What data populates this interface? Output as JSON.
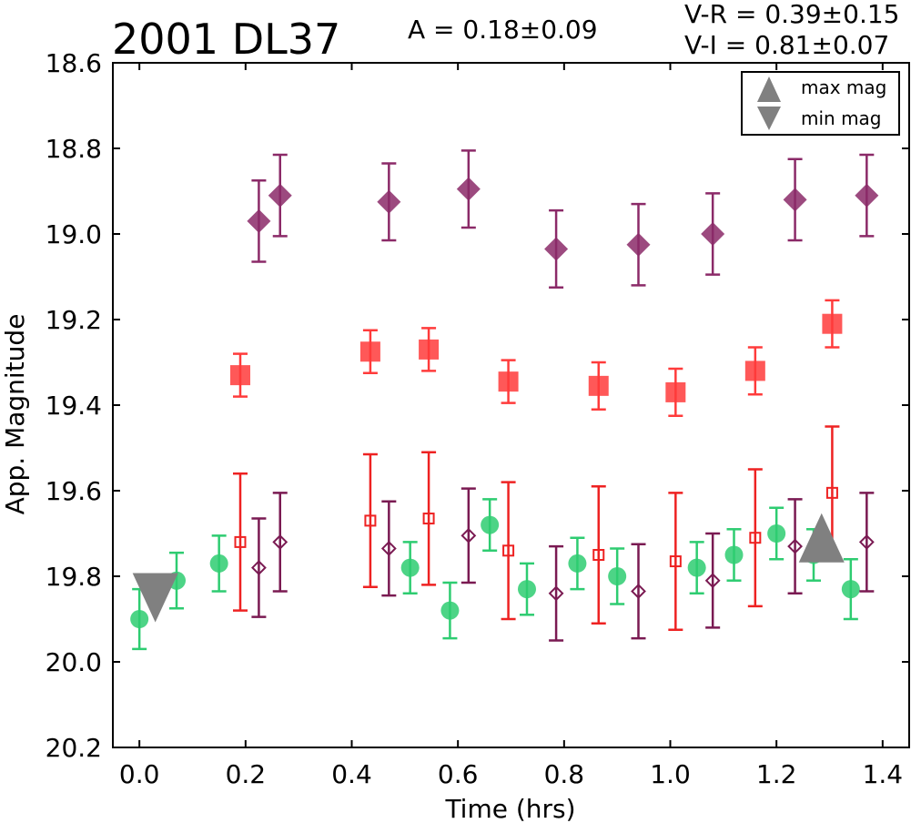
{
  "chart_data": {
    "type": "scatter",
    "title": "2001 DL37",
    "annotations": {
      "amplitude": "A  = 0.18±0.09",
      "v_r": "V-R = 0.39±0.15",
      "v_i": "V-I  = 0.81±0.07"
    },
    "xlabel": "Time (hrs)",
    "ylabel": "App. Magnitude",
    "xlim": [
      -0.05,
      1.45
    ],
    "ylim": [
      20.2,
      18.6
    ],
    "y_inverted": true,
    "xticks": [
      "0.0",
      "0.2",
      "0.4",
      "0.6",
      "0.8",
      "1.0",
      "1.2",
      "1.4"
    ],
    "xtick_values": [
      0.0,
      0.2,
      0.4,
      0.6,
      0.8,
      1.0,
      1.2,
      1.4
    ],
    "yticks": [
      "18.6",
      "18.8",
      "19.0",
      "19.2",
      "19.4",
      "19.6",
      "19.8",
      "20.0",
      "20.2"
    ],
    "ytick_values": [
      18.6,
      18.8,
      19.0,
      19.2,
      19.4,
      19.6,
      19.8,
      20.0,
      20.2
    ],
    "grid": false,
    "legend": {
      "placement": "top-right",
      "entries": [
        {
          "label": "max mag",
          "marker": "triangle-up",
          "color": "#808080"
        },
        {
          "label": "min mag",
          "marker": "triangle-down",
          "color": "#808080"
        }
      ]
    },
    "series": [
      {
        "marker": "circle",
        "filled": true,
        "color": "#2ecc71",
        "points": [
          {
            "x": 0.0,
            "y": 19.9,
            "err": 0.07
          },
          {
            "x": 0.07,
            "y": 19.81,
            "err": 0.065
          },
          {
            "x": 0.15,
            "y": 19.77,
            "err": 0.065
          },
          {
            "x": 0.51,
            "y": 19.78,
            "err": 0.06
          },
          {
            "x": 0.585,
            "y": 19.88,
            "err": 0.065
          },
          {
            "x": 0.66,
            "y": 19.68,
            "err": 0.06
          },
          {
            "x": 0.73,
            "y": 19.83,
            "err": 0.06
          },
          {
            "x": 0.825,
            "y": 19.77,
            "err": 0.06
          },
          {
            "x": 0.9,
            "y": 19.8,
            "err": 0.065
          },
          {
            "x": 1.05,
            "y": 19.78,
            "err": 0.06
          },
          {
            "x": 1.12,
            "y": 19.75,
            "err": 0.06
          },
          {
            "x": 1.2,
            "y": 19.7,
            "err": 0.06
          },
          {
            "x": 1.27,
            "y": 19.75,
            "err": 0.06
          },
          {
            "x": 1.34,
            "y": 19.83,
            "err": 0.07
          }
        ]
      },
      {
        "marker": "square",
        "filled": false,
        "color": "#ee2222",
        "points": [
          {
            "x": 0.19,
            "y": 19.72,
            "err": 0.16
          },
          {
            "x": 0.435,
            "y": 19.67,
            "err": 0.155
          },
          {
            "x": 0.545,
            "y": 19.665,
            "err": 0.155
          },
          {
            "x": 0.695,
            "y": 19.74,
            "err": 0.16
          },
          {
            "x": 0.865,
            "y": 19.75,
            "err": 0.16
          },
          {
            "x": 1.01,
            "y": 19.765,
            "err": 0.16
          },
          {
            "x": 1.16,
            "y": 19.71,
            "err": 0.16
          },
          {
            "x": 1.305,
            "y": 19.605,
            "err": 0.155
          }
        ]
      },
      {
        "marker": "diamond",
        "filled": false,
        "color": "#7a1a52",
        "points": [
          {
            "x": 0.225,
            "y": 19.78,
            "err": 0.115
          },
          {
            "x": 0.265,
            "y": 19.72,
            "err": 0.115
          },
          {
            "x": 0.47,
            "y": 19.735,
            "err": 0.11
          },
          {
            "x": 0.62,
            "y": 19.705,
            "err": 0.11
          },
          {
            "x": 0.785,
            "y": 19.84,
            "err": 0.11
          },
          {
            "x": 0.94,
            "y": 19.835,
            "err": 0.11
          },
          {
            "x": 1.08,
            "y": 19.81,
            "err": 0.11
          },
          {
            "x": 1.235,
            "y": 19.73,
            "err": 0.11
          },
          {
            "x": 1.37,
            "y": 19.72,
            "err": 0.115
          }
        ]
      },
      {
        "marker": "square",
        "filled": true,
        "color": "#ff3b3b",
        "points": [
          {
            "x": 0.19,
            "y": 19.33,
            "err": 0.05
          },
          {
            "x": 0.435,
            "y": 19.275,
            "err": 0.05
          },
          {
            "x": 0.545,
            "y": 19.27,
            "err": 0.05
          },
          {
            "x": 0.695,
            "y": 19.345,
            "err": 0.05
          },
          {
            "x": 0.865,
            "y": 19.355,
            "err": 0.055
          },
          {
            "x": 1.01,
            "y": 19.37,
            "err": 0.055
          },
          {
            "x": 1.16,
            "y": 19.32,
            "err": 0.055
          },
          {
            "x": 1.305,
            "y": 19.21,
            "err": 0.055
          }
        ]
      },
      {
        "marker": "diamond",
        "filled": true,
        "color": "#8b2a68",
        "points": [
          {
            "x": 0.225,
            "y": 18.97,
            "err": 0.095
          },
          {
            "x": 0.265,
            "y": 18.91,
            "err": 0.095
          },
          {
            "x": 0.47,
            "y": 18.925,
            "err": 0.09
          },
          {
            "x": 0.62,
            "y": 18.895,
            "err": 0.09
          },
          {
            "x": 0.785,
            "y": 19.035,
            "err": 0.09
          },
          {
            "x": 0.94,
            "y": 19.025,
            "err": 0.095
          },
          {
            "x": 1.08,
            "y": 19.0,
            "err": 0.095
          },
          {
            "x": 1.235,
            "y": 18.92,
            "err": 0.095
          },
          {
            "x": 1.37,
            "y": 18.91,
            "err": 0.095
          }
        ]
      }
    ],
    "extrema_markers": [
      {
        "type": "min",
        "marker": "triangle-down",
        "x": 0.03,
        "y": 19.85,
        "color": "#808080"
      },
      {
        "type": "max",
        "marker": "triangle-up",
        "x": 1.285,
        "y": 19.71,
        "color": "#808080"
      }
    ]
  }
}
